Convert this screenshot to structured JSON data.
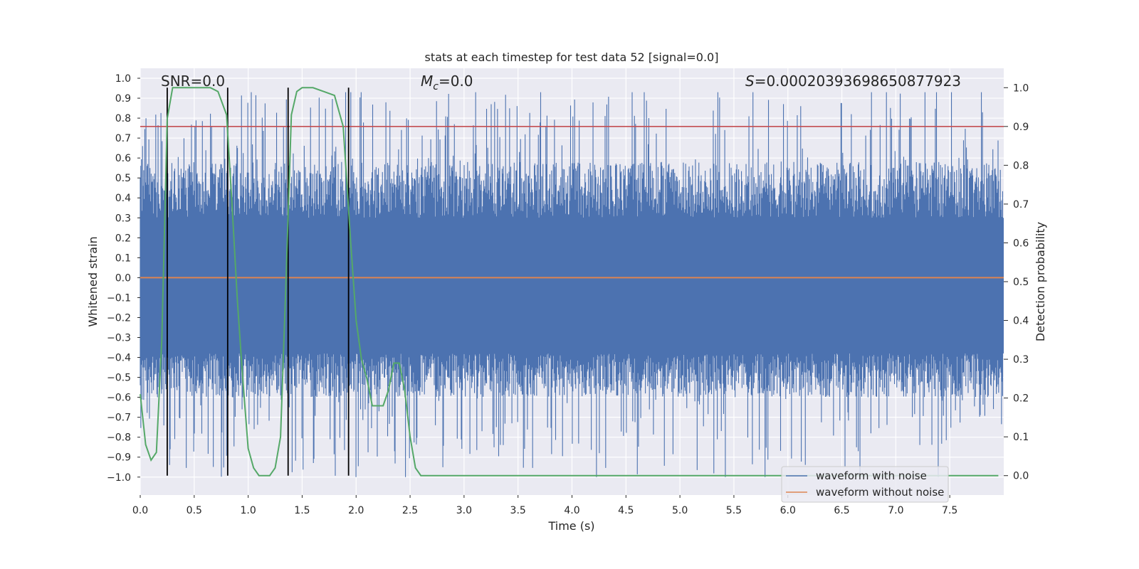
{
  "chart_data": {
    "type": "line",
    "title": "stats at each timestep for test data 52 [signal=0.0]",
    "xlabel": "Time (s)",
    "ylabel": "Whitened strain",
    "y2label": "Detection probability",
    "xlim": [
      0.0,
      8.0
    ],
    "ylim": [
      -1.09,
      1.05
    ],
    "y2lim": [
      -0.05,
      1.05
    ],
    "xticks": [
      "0.0",
      "0.5",
      "1.0",
      "1.5",
      "2.0",
      "2.5",
      "3.0",
      "3.5",
      "4.0",
      "4.5",
      "5.0",
      "5.5",
      "6.0",
      "6.5",
      "7.0",
      "7.5"
    ],
    "yticks": [
      "1.0",
      "0.9",
      "0.8",
      "0.7",
      "0.6",
      "0.5",
      "0.4",
      "0.3",
      "0.2",
      "0.1",
      "0.0",
      "-0.1",
      "-0.2",
      "-0.3",
      "-0.4",
      "-0.5",
      "-0.6",
      "-0.7",
      "-0.8",
      "-0.9",
      "-1.0"
    ],
    "y2ticks": [
      "1.0",
      "0.9",
      "0.8",
      "0.7",
      "0.6",
      "0.5",
      "0.4",
      "0.3",
      "0.2",
      "0.1",
      "0.0"
    ],
    "grid": true,
    "legend_placement": "lower-right",
    "annotations": {
      "snr": "SNR=0.0",
      "mc_symbol": "M",
      "mc_sub": "c",
      "mc_value": "=0.0",
      "s_symbol": "S",
      "s_value": "=0.00020393698650877923"
    },
    "series": [
      {
        "name": "waveform with noise",
        "color": "#4c72b0",
        "envelope_note": "dense noise",
        "noise_range": [
          -1.0,
          0.93
        ]
      },
      {
        "name": "waveform without noise",
        "color": "#dd8452",
        "constant": 0.0
      }
    ],
    "threshold": {
      "color": "#c44e52",
      "y2": 0.9
    },
    "probability": {
      "color": "#55a868",
      "x": [
        0.0,
        0.05,
        0.1,
        0.15,
        0.2,
        0.25,
        0.3,
        0.35,
        0.5,
        0.65,
        0.72,
        0.8,
        0.85,
        0.9,
        0.95,
        1.0,
        1.05,
        1.1,
        1.15,
        1.2,
        1.25,
        1.3,
        1.35,
        1.4,
        1.45,
        1.5,
        1.55,
        1.6,
        1.7,
        1.8,
        1.88,
        1.95,
        2.0,
        2.05,
        2.1,
        2.15,
        2.2,
        2.25,
        2.3,
        2.35,
        2.4,
        2.45,
        2.5,
        2.55,
        2.6,
        2.65,
        3.0,
        4.0,
        5.0,
        6.0,
        7.0,
        7.95
      ],
      "y": [
        0.21,
        0.08,
        0.04,
        0.06,
        0.35,
        0.92,
        1.0,
        1.0,
        1.0,
        1.0,
        0.99,
        0.93,
        0.7,
        0.45,
        0.25,
        0.07,
        0.02,
        0.0,
        0.0,
        0.0,
        0.02,
        0.1,
        0.5,
        0.93,
        0.99,
        1.0,
        1.0,
        1.0,
        0.99,
        0.98,
        0.9,
        0.6,
        0.4,
        0.3,
        0.25,
        0.18,
        0.18,
        0.18,
        0.22,
        0.29,
        0.29,
        0.22,
        0.1,
        0.02,
        0.0,
        0.0,
        0.0,
        0.0,
        0.0,
        0.0,
        0.0,
        0.0
      ]
    },
    "vlines": {
      "color": "#000000",
      "x": [
        0.25,
        0.81,
        1.37,
        1.93
      ]
    }
  }
}
